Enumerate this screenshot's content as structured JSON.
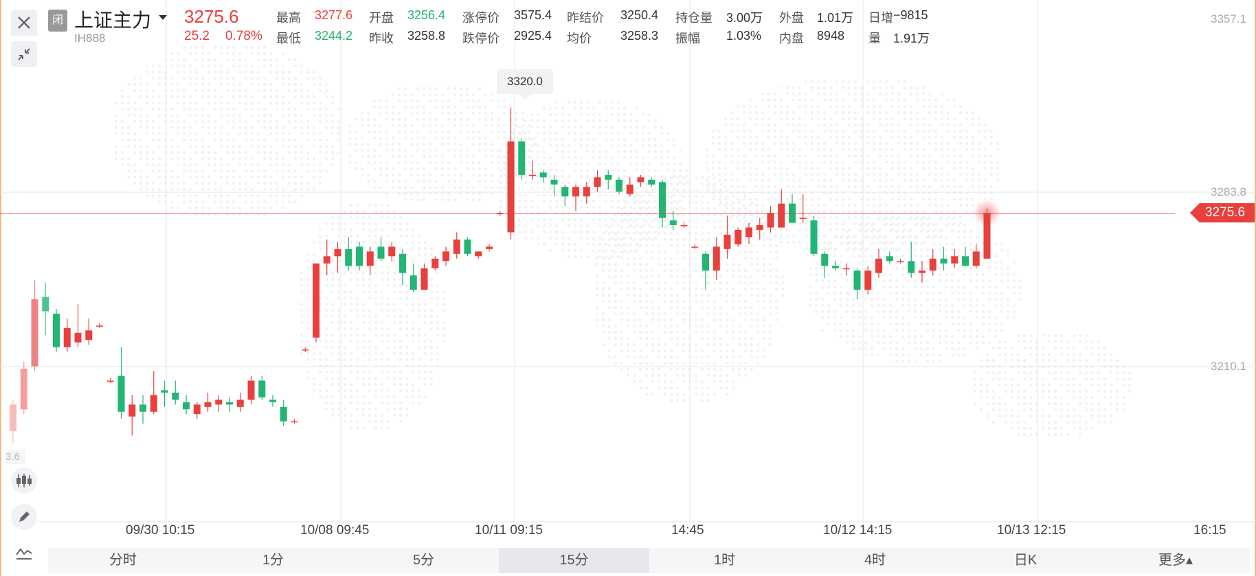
{
  "header": {
    "status_badge": "闭",
    "title": "上证主力",
    "code": "IH888",
    "last_price": "3275.6",
    "change": "25.2",
    "change_pct": "0.78%",
    "stats_row1": [
      {
        "label": "最高",
        "value": "3277.6",
        "color": "red"
      },
      {
        "label": "开盘",
        "value": "3256.4",
        "color": "green"
      },
      {
        "label": "涨停价",
        "value": "3575.4",
        "color": "black"
      },
      {
        "label": "昨结价",
        "value": "3250.4",
        "color": "black"
      },
      {
        "label": "持仓量",
        "value": "3.00万",
        "color": "black"
      },
      {
        "label": "外盘",
        "value": "1.01万",
        "color": "black"
      },
      {
        "label": "日增",
        "value": "−9815",
        "color": "black"
      }
    ],
    "stats_row2": [
      {
        "label": "最低",
        "value": "3244.2",
        "color": "green"
      },
      {
        "label": "昨收",
        "value": "3258.8",
        "color": "black"
      },
      {
        "label": "跌停价",
        "value": "2925.4",
        "color": "black"
      },
      {
        "label": "均价",
        "value": "3258.3",
        "color": "black"
      },
      {
        "label": "振幅",
        "value": "1.03%",
        "color": "black"
      },
      {
        "label": "内盘",
        "value": "8948",
        "color": "black"
      },
      {
        "label": "量",
        "value": "1.91万",
        "color": "black"
      }
    ]
  },
  "colors": {
    "up": "#e8403d",
    "down": "#22b573",
    "accent": "#e8403d",
    "grid": "#e8e8e8"
  },
  "icons": [
    "close-icon",
    "collapse-icon",
    "chevron-down-icon",
    "candlestick-icon",
    "pencil-icon",
    "indicator-icon"
  ],
  "chart": {
    "y_labels": [
      "3357.1",
      "3283.8",
      "3210.1"
    ],
    "left_partial_label": "3.6",
    "current_price_tag": "3275.6",
    "high_marker": "3320.0",
    "x_labels": [
      "09/30 10:15",
      "10/08 09:45",
      "10/11 09:15",
      "14:45",
      "10/12 14:15",
      "10/13 12:15",
      "16:15"
    ]
  },
  "chart_data": {
    "type": "candlestick",
    "ylim": [
      3147.0,
      3357.1
    ],
    "candles": [
      {
        "o": 3185,
        "h": 3198,
        "l": 3180,
        "c": 3196
      },
      {
        "o": 3194,
        "h": 3214,
        "l": 3192,
        "c": 3211
      },
      {
        "o": 3212,
        "h": 3248,
        "l": 3210,
        "c": 3240
      },
      {
        "o": 3241,
        "h": 3247,
        "l": 3225,
        "c": 3235
      },
      {
        "o": 3234,
        "h": 3236,
        "l": 3218,
        "c": 3220
      },
      {
        "o": 3220,
        "h": 3232,
        "l": 3218,
        "c": 3228
      },
      {
        "o": 3222,
        "h": 3238,
        "l": 3220,
        "c": 3226
      },
      {
        "o": 3223,
        "h": 3232,
        "l": 3221,
        "c": 3227
      },
      {
        "o": 3229,
        "h": 3230,
        "l": 3228,
        "c": 3229
      },
      {
        "o": 3206,
        "h": 3207,
        "l": 3205,
        "c": 3206
      },
      {
        "o": 3208,
        "h": 3220,
        "l": 3190,
        "c": 3193
      },
      {
        "o": 3191,
        "h": 3200,
        "l": 3183,
        "c": 3196
      },
      {
        "o": 3196,
        "h": 3200,
        "l": 3188,
        "c": 3193
      },
      {
        "o": 3193,
        "h": 3210,
        "l": 3192,
        "c": 3200
      },
      {
        "o": 3202,
        "h": 3206,
        "l": 3195,
        "c": 3201
      },
      {
        "o": 3201,
        "h": 3206,
        "l": 3196,
        "c": 3198
      },
      {
        "o": 3197,
        "h": 3200,
        "l": 3192,
        "c": 3194
      },
      {
        "o": 3192,
        "h": 3197,
        "l": 3190,
        "c": 3196
      },
      {
        "o": 3195,
        "h": 3201,
        "l": 3193,
        "c": 3197
      },
      {
        "o": 3196,
        "h": 3200,
        "l": 3193,
        "c": 3198
      },
      {
        "o": 3197,
        "h": 3199,
        "l": 3193,
        "c": 3196
      },
      {
        "o": 3195,
        "h": 3201,
        "l": 3193,
        "c": 3198
      },
      {
        "o": 3198,
        "h": 3208,
        "l": 3196,
        "c": 3206
      },
      {
        "o": 3206,
        "h": 3208,
        "l": 3198,
        "c": 3199
      },
      {
        "o": 3198,
        "h": 3200,
        "l": 3195,
        "c": 3197
      },
      {
        "o": 3195,
        "h": 3198,
        "l": 3187,
        "c": 3189
      },
      {
        "o": 3189,
        "h": 3190,
        "l": 3188,
        "c": 3189
      },
      {
        "o": 3219,
        "h": 3220,
        "l": 3218,
        "c": 3219
      },
      {
        "o": 3224,
        "h": 3255,
        "l": 3222,
        "c": 3255
      },
      {
        "o": 3255,
        "h": 3265,
        "l": 3250,
        "c": 3258
      },
      {
        "o": 3258,
        "h": 3264,
        "l": 3251,
        "c": 3261
      },
      {
        "o": 3261,
        "h": 3266,
        "l": 3252,
        "c": 3254
      },
      {
        "o": 3262,
        "h": 3264,
        "l": 3252,
        "c": 3254
      },
      {
        "o": 3254,
        "h": 3262,
        "l": 3250,
        "c": 3260
      },
      {
        "o": 3262,
        "h": 3266,
        "l": 3256,
        "c": 3257
      },
      {
        "o": 3258,
        "h": 3264,
        "l": 3256,
        "c": 3262
      },
      {
        "o": 3259,
        "h": 3261,
        "l": 3246,
        "c": 3251
      },
      {
        "o": 3250,
        "h": 3255,
        "l": 3243,
        "c": 3244
      },
      {
        "o": 3244,
        "h": 3255,
        "l": 3244,
        "c": 3253
      },
      {
        "o": 3253,
        "h": 3258,
        "l": 3252,
        "c": 3257
      },
      {
        "o": 3256,
        "h": 3262,
        "l": 3254,
        "c": 3260
      },
      {
        "o": 3259,
        "h": 3268,
        "l": 3257,
        "c": 3265
      },
      {
        "o": 3265,
        "h": 3266,
        "l": 3258,
        "c": 3259
      },
      {
        "o": 3258,
        "h": 3260,
        "l": 3257,
        "c": 3260
      },
      {
        "o": 3261,
        "h": 3263,
        "l": 3260,
        "c": 3262
      },
      {
        "o": 3276,
        "h": 3277,
        "l": 3275,
        "c": 3276
      },
      {
        "o": 3268,
        "h": 3320,
        "l": 3265,
        "c": 3306
      },
      {
        "o": 3306,
        "h": 3307,
        "l": 3290,
        "c": 3292
      },
      {
        "o": 3292,
        "h": 3298,
        "l": 3290,
        "c": 3292
      },
      {
        "o": 3293,
        "h": 3294,
        "l": 3289,
        "c": 3291
      },
      {
        "o": 3290,
        "h": 3292,
        "l": 3283,
        "c": 3288
      },
      {
        "o": 3287,
        "h": 3288,
        "l": 3279,
        "c": 3283
      },
      {
        "o": 3283,
        "h": 3288,
        "l": 3277,
        "c": 3287
      },
      {
        "o": 3283,
        "h": 3289,
        "l": 3280,
        "c": 3287
      },
      {
        "o": 3287,
        "h": 3294,
        "l": 3285,
        "c": 3291
      },
      {
        "o": 3292,
        "h": 3294,
        "l": 3286,
        "c": 3290
      },
      {
        "o": 3290,
        "h": 3291,
        "l": 3284,
        "c": 3285
      },
      {
        "o": 3284,
        "h": 3291,
        "l": 3283,
        "c": 3288
      },
      {
        "o": 3289,
        "h": 3292,
        "l": 3287,
        "c": 3291
      },
      {
        "o": 3290,
        "h": 3291,
        "l": 3287,
        "c": 3288
      },
      {
        "o": 3289,
        "h": 3290,
        "l": 3270,
        "c": 3274
      },
      {
        "o": 3273,
        "h": 3277,
        "l": 3269,
        "c": 3271
      },
      {
        "o": 3271,
        "h": 3272,
        "l": 3270,
        "c": 3271
      },
      {
        "o": 3262,
        "h": 3263,
        "l": 3261,
        "c": 3262
      },
      {
        "o": 3259,
        "h": 3260,
        "l": 3244,
        "c": 3252
      },
      {
        "o": 3252,
        "h": 3266,
        "l": 3248,
        "c": 3262
      },
      {
        "o": 3261,
        "h": 3275,
        "l": 3257,
        "c": 3267
      },
      {
        "o": 3263,
        "h": 3270,
        "l": 3262,
        "c": 3269
      },
      {
        "o": 3266,
        "h": 3272,
        "l": 3263,
        "c": 3270
      },
      {
        "o": 3269,
        "h": 3274,
        "l": 3265,
        "c": 3271
      },
      {
        "o": 3270,
        "h": 3279,
        "l": 3268,
        "c": 3276
      },
      {
        "o": 3270,
        "h": 3286,
        "l": 3270,
        "c": 3280
      },
      {
        "o": 3280,
        "h": 3284,
        "l": 3272,
        "c": 3272
      },
      {
        "o": 3274,
        "h": 3284,
        "l": 3272,
        "c": 3274
      },
      {
        "o": 3273,
        "h": 3275,
        "l": 3258,
        "c": 3259
      },
      {
        "o": 3259,
        "h": 3260,
        "l": 3249,
        "c": 3254
      },
      {
        "o": 3254,
        "h": 3256,
        "l": 3252,
        "c": 3253
      },
      {
        "o": 3253,
        "h": 3255,
        "l": 3250,
        "c": 3253
      },
      {
        "o": 3252,
        "h": 3253,
        "l": 3240,
        "c": 3244
      },
      {
        "o": 3244,
        "h": 3254,
        "l": 3242,
        "c": 3252
      },
      {
        "o": 3251,
        "h": 3261,
        "l": 3249,
        "c": 3257
      },
      {
        "o": 3258,
        "h": 3260,
        "l": 3255,
        "c": 3256
      },
      {
        "o": 3256,
        "h": 3257,
        "l": 3255,
        "c": 3256
      },
      {
        "o": 3256,
        "h": 3264,
        "l": 3249,
        "c": 3251
      },
      {
        "o": 3251,
        "h": 3256,
        "l": 3247,
        "c": 3252
      },
      {
        "o": 3252,
        "h": 3261,
        "l": 3250,
        "c": 3257
      },
      {
        "o": 3257,
        "h": 3262,
        "l": 3252,
        "c": 3255
      },
      {
        "o": 3255,
        "h": 3261,
        "l": 3253,
        "c": 3258
      },
      {
        "o": 3258,
        "h": 3262,
        "l": 3254,
        "c": 3254
      },
      {
        "o": 3254,
        "h": 3263,
        "l": 3253,
        "c": 3260
      },
      {
        "o": 3257,
        "h": 3278,
        "l": 3257,
        "c": 3276
      }
    ]
  },
  "tabs": [
    "分时",
    "1分",
    "5分",
    "15分",
    "1时",
    "4时",
    "日K",
    "更多▴"
  ],
  "active_tab": "15分"
}
